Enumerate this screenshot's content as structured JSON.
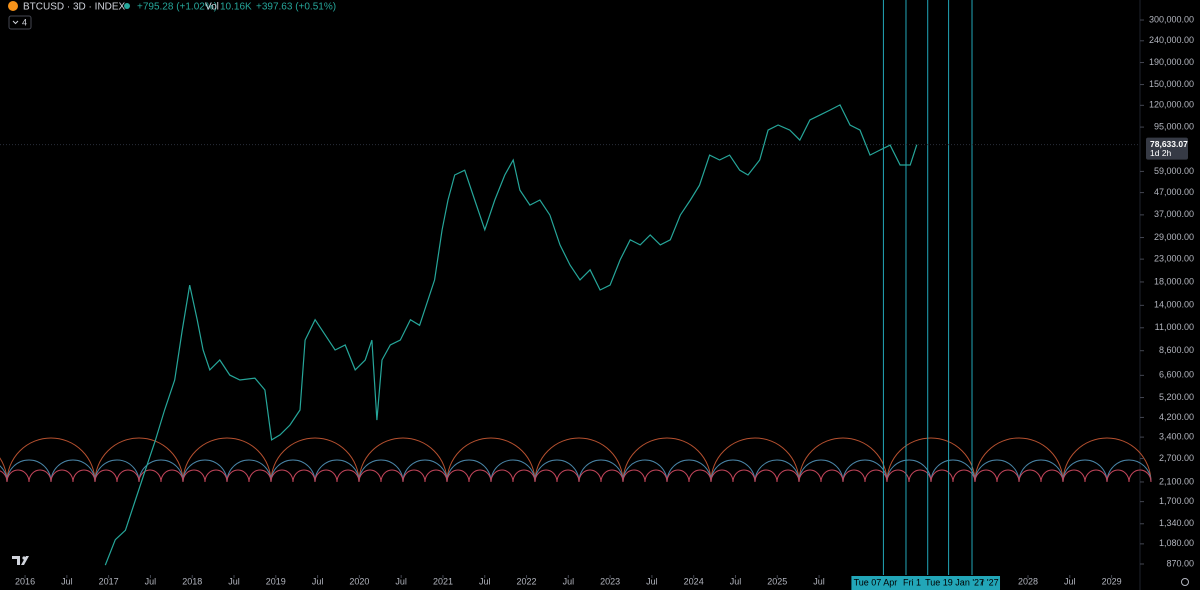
{
  "chart_data": {
    "type": "line",
    "symbol_title": "BTCUSD · 3D · INDEX",
    "change": "+795.28 (+1.02%)",
    "volume_label": "Vol",
    "volume": "10.16K",
    "volume_change": "+397.63 (+0.51%)",
    "indicator_count": "4",
    "log_scale": true,
    "color": "#26a69a",
    "x": [
      2016.96,
      2017.08,
      2017.2,
      2017.32,
      2017.44,
      2017.56,
      2017.67,
      2017.79,
      2017.88,
      2017.97,
      2018.06,
      2018.13,
      2018.21,
      2018.33,
      2018.45,
      2018.57,
      2018.75,
      2018.87,
      2018.95,
      2019.05,
      2019.17,
      2019.29,
      2019.35,
      2019.47,
      2019.59,
      2019.71,
      2019.83,
      2019.95,
      2020.07,
      2020.15,
      2020.21,
      2020.27,
      2020.37,
      2020.49,
      2020.61,
      2020.72,
      2020.82,
      2020.9,
      2020.99,
      2021.06,
      2021.14,
      2021.26,
      2021.38,
      2021.5,
      2021.62,
      2021.74,
      2021.84,
      2021.92,
      2022.04,
      2022.16,
      2022.28,
      2022.4,
      2022.52,
      2022.64,
      2022.76,
      2022.88,
      2023.0,
      2023.12,
      2023.24,
      2023.36,
      2023.48,
      2023.6,
      2023.72,
      2023.84,
      2023.96,
      2024.07,
      2024.19,
      2024.31,
      2024.43,
      2024.55,
      2024.65,
      2024.79,
      2024.89,
      2025.01,
      2025.15,
      2025.27,
      2025.39,
      2025.51,
      2025.63,
      2025.75,
      2025.87,
      2025.99,
      2026.11,
      2026.23,
      2026.35,
      2026.47,
      2026.59,
      2026.67
    ],
    "values": [
      860,
      1130,
      1250,
      1730,
      2390,
      3300,
      4550,
      6280,
      10700,
      17400,
      12000,
      8670,
      7000,
      7780,
      6620,
      6280,
      6410,
      5640,
      3300,
      3480,
      3870,
      4550,
      9640,
      12000,
      10200,
      8670,
      9140,
      7000,
      7780,
      9640,
      4080,
      7780,
      9140,
      9640,
      12000,
      11300,
      14800,
      18400,
      31500,
      43400,
      56800,
      59800,
      43400,
      31500,
      43400,
      56800,
      66700,
      48300,
      41100,
      43400,
      36900,
      26800,
      21600,
      18400,
      20500,
      16500,
      17400,
      22800,
      28300,
      26800,
      29800,
      26800,
      28300,
      36900,
      43400,
      50900,
      70300,
      66700,
      70300,
      59800,
      56800,
      66700,
      92000,
      97100,
      92000,
      82600,
      102500,
      108100,
      114000,
      120500,
      97100,
      92000,
      70300,
      74300,
      78300,
      63200,
      63200,
      78633.07
    ],
    "last_price": 78633.07,
    "last_price_label": "78,633.07",
    "countdown": "1d 2h",
    "xlim": [
      2015.7,
      2029.34
    ],
    "ylim": [
      773,
      372000
    ],
    "xticks": [
      2016,
      {
        "value": 2016.5,
        "label": "Jul"
      },
      2017,
      {
        "value": 2017.5,
        "label": "Jul"
      },
      2018,
      {
        "value": 2018.5,
        "label": "Jul"
      },
      2019,
      {
        "value": 2019.5,
        "label": "Jul"
      },
      2020,
      {
        "value": 2020.5,
        "label": "Jul"
      },
      2021,
      {
        "value": 2021.5,
        "label": "Jul"
      },
      2022,
      {
        "value": 2022.5,
        "label": "Jul"
      },
      2023,
      {
        "value": 2023.5,
        "label": "Jul"
      },
      2024,
      {
        "value": 2024.5,
        "label": "Jul"
      },
      2025,
      {
        "value": 2025.5,
        "label": "Jul"
      },
      2028,
      {
        "value": 2028.5,
        "label": "Jul"
      },
      2029
    ],
    "yticks": [
      {
        "value": 300000,
        "label": "300,000.00"
      },
      {
        "value": 240000,
        "label": "240,000.00"
      },
      {
        "value": 190000,
        "label": "190,000.00"
      },
      {
        "value": 150000,
        "label": "150,000.00"
      },
      {
        "value": 120000,
        "label": "120,000.00"
      },
      {
        "value": 95000,
        "label": "95,000.00"
      },
      {
        "value": 59000,
        "label": "59,000.00"
      },
      {
        "value": 47000,
        "label": "47,000.00"
      },
      {
        "value": 37000,
        "label": "37,000.00"
      },
      {
        "value": 29000,
        "label": "29,000.00"
      },
      {
        "value": 23000,
        "label": "23,000.00"
      },
      {
        "value": 18000,
        "label": "18,000.00"
      },
      {
        "value": 14000,
        "label": "14,000.00"
      },
      {
        "value": 11000,
        "label": "11,000.00"
      },
      {
        "value": 8600,
        "label": "8,600.00"
      },
      {
        "value": 6600,
        "label": "6,600.00"
      },
      {
        "value": 5200,
        "label": "5,200.00"
      },
      {
        "value": 4200,
        "label": "4,200.00"
      },
      {
        "value": 3400,
        "label": "3,400.00"
      },
      {
        "value": 2700,
        "label": "2,700.00"
      },
      {
        "value": 2100,
        "label": "2,100.00"
      },
      {
        "value": 1700,
        "label": "1,700.00"
      },
      {
        "value": 1340,
        "label": "1,340.00"
      },
      {
        "value": 1080,
        "label": "1,080.00"
      },
      {
        "value": 870,
        "label": "870.00"
      }
    ],
    "markers": [
      {
        "x": 2026.27,
        "label": "Tue 07 Apr"
      },
      {
        "x": 2026.54,
        "label": "Fri 1"
      },
      {
        "x": 2026.8,
        "label": null
      },
      {
        "x": 2027.05,
        "label": "Tue 19 Jan '27"
      },
      {
        "x": 2027.33,
        "label": "r '27"
      }
    ],
    "marker_color": "#22a6b8"
  }
}
